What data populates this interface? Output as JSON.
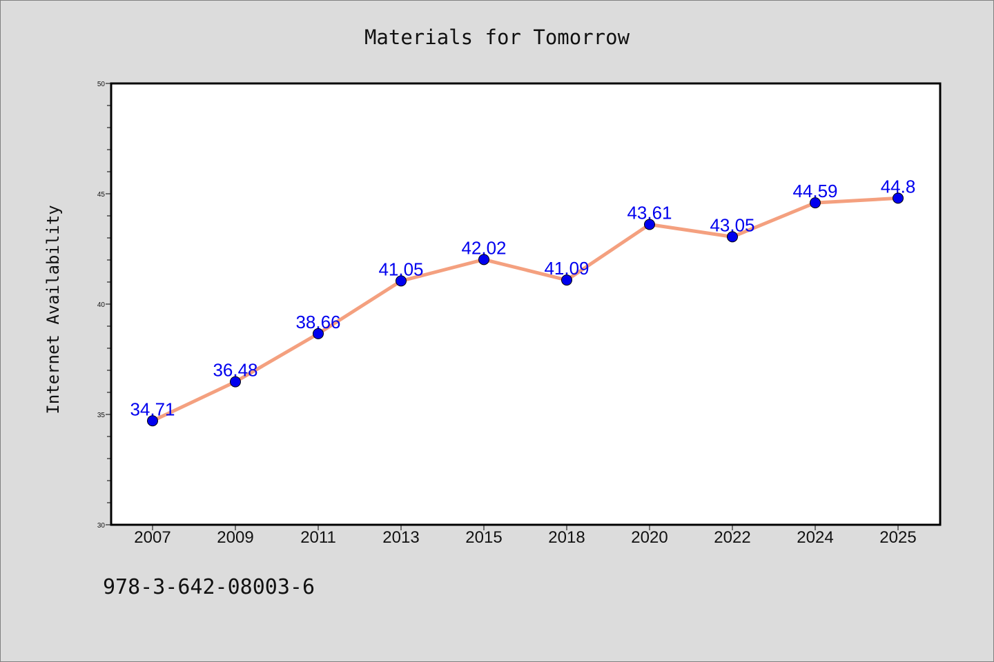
{
  "chart_data": {
    "type": "line",
    "title": "Materials for Tomorrow",
    "xlabel": "",
    "ylabel": "Internet Availability",
    "categories": [
      "2007",
      "2009",
      "2011",
      "2013",
      "2015",
      "2018",
      "2020",
      "2022",
      "2024",
      "2025"
    ],
    "series": [
      {
        "values": [
          34.71,
          36.48,
          38.66,
          41.05,
          42.02,
          41.09,
          43.61,
          43.05,
          44.59,
          44.8
        ],
        "labels": [
          "34.71",
          "36.48",
          "38.66",
          "41.05",
          "42.02",
          "41.09",
          "43.61",
          "43.05",
          "44.59",
          "44.8"
        ],
        "line_color": "#f4a07f",
        "marker_color": "#0000ee",
        "label_color": "#0000ee"
      }
    ],
    "ylim": [
      30,
      50
    ],
    "yticks": [
      30,
      35,
      40,
      45,
      50
    ],
    "grid": false
  },
  "footer": {
    "identifier": "978-3-642-08003-6"
  }
}
